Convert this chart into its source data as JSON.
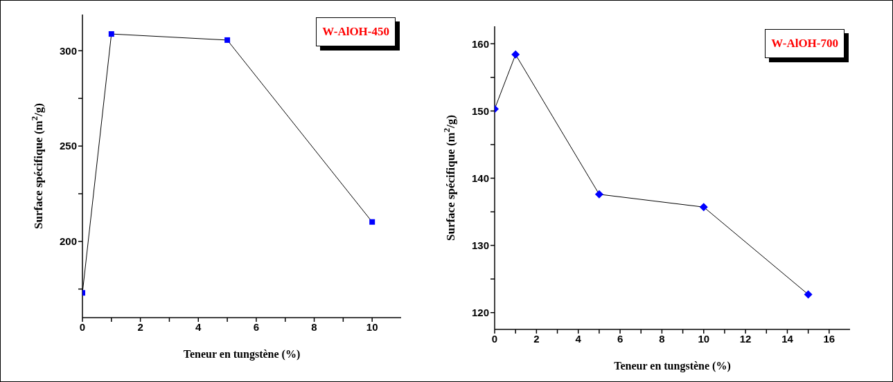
{
  "chart_data": [
    {
      "type": "line",
      "xlabel": "Teneur en tungstène (%)",
      "ylabel": "Surface spécifique (m$^{2}$/g)",
      "annotations": [
        "W-AlOH-450"
      ],
      "x": [
        0,
        1,
        5,
        10
      ],
      "series": [
        {
          "color": "#0000ff",
          "values": [
            173,
            308.8,
            305.6,
            210.2
          ]
        }
      ],
      "xlim": [
        0,
        11
      ],
      "xticks": [
        0,
        {
          "value": 1,
          "label": null
        },
        2,
        {
          "value": 3,
          "label": null
        },
        4,
        {
          "value": 5,
          "label": null
        },
        6,
        {
          "value": 7,
          "label": null
        },
        8,
        {
          "value": 9,
          "label": null
        },
        10
      ],
      "ylim": [
        160,
        319
      ],
      "yticks": [
        {
          "value": 175,
          "label": null
        },
        200,
        {
          "value": 225,
          "label": null
        },
        250,
        {
          "value": 275,
          "label": null
        },
        300
      ],
      "marker": "square",
      "line_style": "solid",
      "grid": false,
      "legend": false
    },
    {
      "type": "line",
      "xlabel": "Teneur en tungstène (%)",
      "ylabel": "Surface spécifique (m$^{2}$/g)",
      "annotations": [
        "W-AlOH-700"
      ],
      "x": [
        0,
        1,
        5,
        10,
        15
      ],
      "series": [
        {
          "color": "#0000ff",
          "values": [
            150.3,
            158.4,
            137.6,
            135.7,
            122.7
          ]
        }
      ],
      "xlim": [
        0,
        17
      ],
      "xticks": [
        0,
        {
          "value": 1,
          "label": null
        },
        2,
        {
          "value": 3,
          "label": null
        },
        4,
        {
          "value": 5,
          "label": null
        },
        6,
        {
          "value": 7,
          "label": null
        },
        8,
        {
          "value": 9,
          "label": null
        },
        10,
        {
          "value": 11,
          "label": null
        },
        12,
        {
          "value": 13,
          "label": null
        },
        14,
        {
          "value": 15,
          "label": null
        },
        16
      ],
      "ylim": [
        117.5,
        162.6
      ],
      "yticks": [
        120,
        {
          "value": 125,
          "label": null
        },
        130,
        {
          "value": 135,
          "label": null
        },
        140,
        {
          "value": 145,
          "label": null
        },
        150,
        {
          "value": 155,
          "label": null
        },
        160
      ],
      "marker": "diamond",
      "line_style": "solid",
      "grid": false,
      "legend": false
    }
  ]
}
